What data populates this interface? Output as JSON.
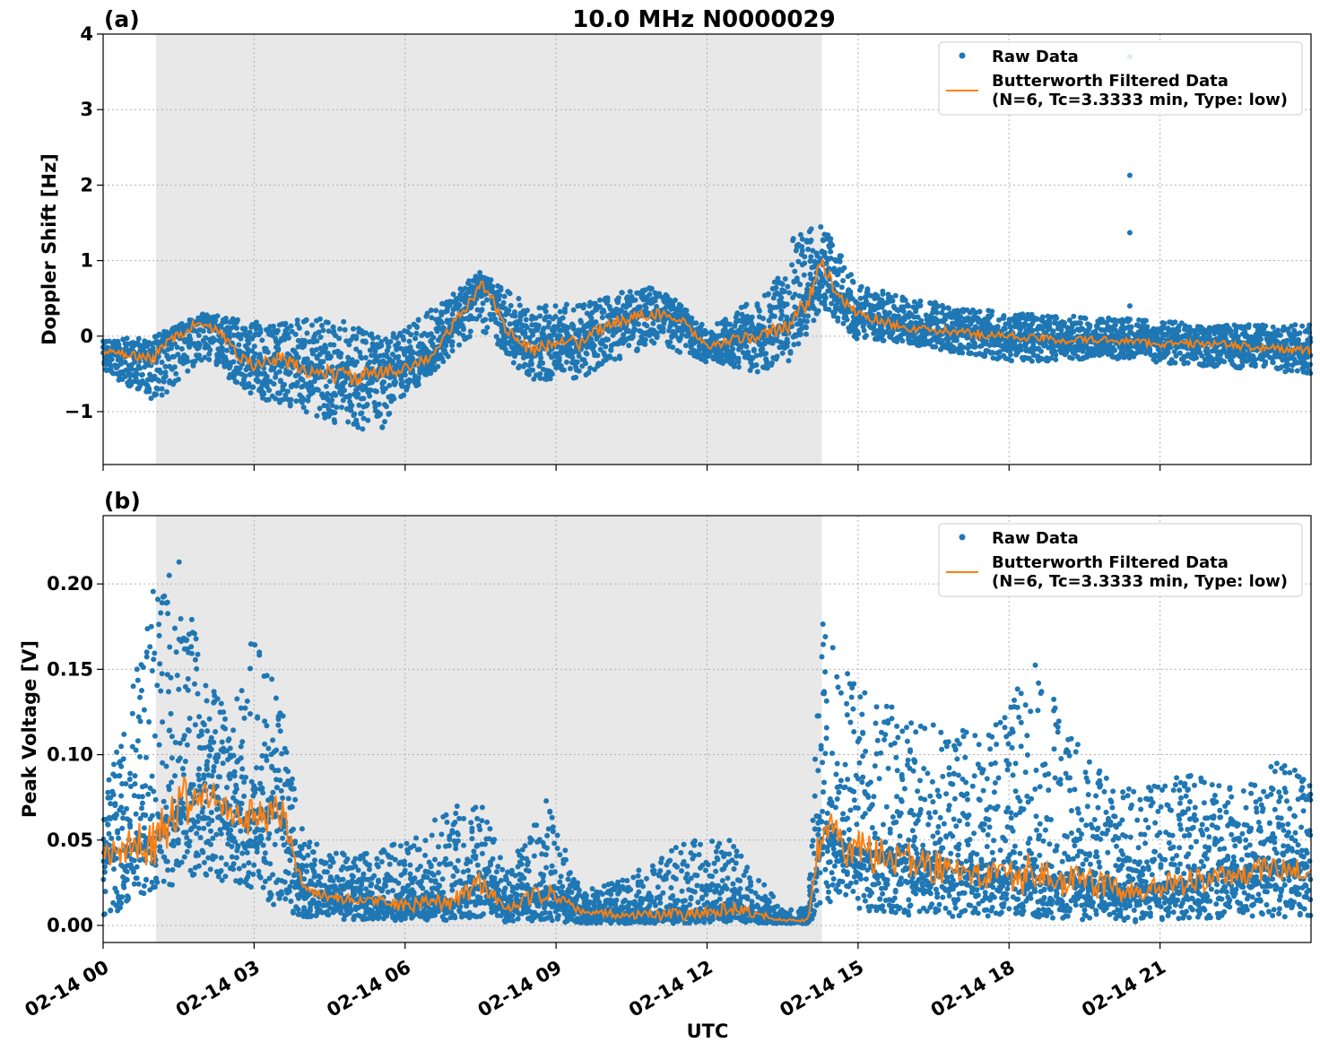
{
  "figure": {
    "title": "10.0 MHz N0000029",
    "xlabel": "UTC"
  },
  "chart_data": [
    {
      "type": "scatter",
      "panel_label": "(a)",
      "ylabel": "Doppler Shift [Hz]",
      "xlim_hours": [
        0,
        24
      ],
      "ylim": [
        -1.7,
        4.0
      ],
      "yticks": [
        -1,
        0,
        1,
        2,
        3,
        4
      ],
      "ytick_labels": [
        "−1",
        "0",
        "1",
        "2",
        "3",
        "4"
      ],
      "xticks_hours": [
        0,
        3,
        6,
        9,
        12,
        15,
        18,
        21
      ],
      "xtick_labels": [
        "02-14 00",
        "02-14 03",
        "02-14 06",
        "02-14 09",
        "02-14 12",
        "02-14 15",
        "02-14 18",
        "02-14 21"
      ],
      "grid": true,
      "shaded_interval_hours": [
        1.05,
        14.28
      ],
      "legend_position": "top-right",
      "legend": [
        "Raw Data",
        "Butterworth Filtered Data",
        "(N=6, Tc=3.3333 min, Type: low)"
      ],
      "colors": {
        "raw": "#1f77b4",
        "filtered": "#ff7f0e",
        "shade": "#e8e8e8"
      },
      "series": [
        {
          "name": "Butterworth Filtered Data",
          "x_hours": [
            0,
            0.5,
            1.0,
            1.3,
            1.6,
            1.9,
            2.3,
            2.7,
            3.0,
            3.5,
            4.0,
            4.5,
            5.0,
            5.5,
            6.0,
            6.5,
            7.0,
            7.3,
            7.5,
            7.7,
            8.0,
            8.5,
            9.0,
            9.5,
            10.0,
            10.5,
            11.0,
            11.5,
            12.0,
            12.5,
            13.0,
            13.5,
            14.0,
            14.28,
            14.6,
            15.0,
            15.5,
            16.0,
            17.0,
            18.0,
            19.0,
            20.0,
            21.0,
            22.0,
            23.0,
            24.0
          ],
          "values": [
            -0.2,
            -0.25,
            -0.3,
            -0.05,
            0.05,
            0.2,
            0.05,
            -0.25,
            -0.4,
            -0.3,
            -0.45,
            -0.5,
            -0.55,
            -0.5,
            -0.4,
            -0.3,
            0.2,
            0.45,
            0.7,
            0.55,
            0.1,
            -0.2,
            -0.05,
            -0.1,
            0.15,
            0.25,
            0.3,
            0.2,
            -0.15,
            -0.05,
            0.0,
            0.1,
            0.45,
            1.0,
            0.5,
            0.3,
            0.2,
            0.1,
            0.05,
            0.0,
            -0.05,
            -0.05,
            -0.1,
            -0.1,
            -0.15,
            -0.2
          ]
        },
        {
          "name": "Raw Data",
          "spread_note": "raw samples scatter around the filtered curve",
          "x_hours": [
            0,
            1.0,
            2.0,
            3.0,
            4.0,
            4.8,
            5.5,
            6.0,
            7.5,
            8.5,
            9.5,
            11.0,
            12.0,
            13.2,
            13.7,
            14.28,
            15.0,
            16.0,
            18.0,
            20.0,
            22.0,
            24.0
          ],
          "upper_envelope": [
            -0.05,
            0.0,
            0.3,
            0.2,
            0.25,
            0.2,
            0.0,
            0.1,
            0.85,
            0.4,
            0.45,
            0.7,
            0.1,
            0.6,
            1.3,
            1.5,
            0.7,
            0.5,
            0.3,
            0.25,
            0.15,
            0.15
          ],
          "lower_envelope": [
            -0.45,
            -0.9,
            -0.3,
            -0.8,
            -1.0,
            -1.2,
            -1.3,
            -0.8,
            0.1,
            -0.6,
            -0.55,
            -0.1,
            -0.35,
            -0.5,
            -0.3,
            0.4,
            -0.05,
            -0.1,
            -0.35,
            -0.3,
            -0.4,
            -0.5
          ],
          "outliers": [
            {
              "x": 20.4,
              "y": 2.13
            },
            {
              "x": 20.4,
              "y": 1.37
            },
            {
              "x": 20.4,
              "y": 0.4
            },
            {
              "x": 20.4,
              "y": 3.7
            }
          ]
        }
      ]
    },
    {
      "type": "scatter",
      "panel_label": "(b)",
      "ylabel": "Peak Voltage [V]",
      "xlim_hours": [
        0,
        24
      ],
      "ylim": [
        -0.01,
        0.24
      ],
      "yticks": [
        0.0,
        0.05,
        0.1,
        0.15,
        0.2
      ],
      "ytick_labels": [
        "0.00",
        "0.05",
        "0.10",
        "0.15",
        "0.20"
      ],
      "xticks_hours": [
        0,
        3,
        6,
        9,
        12,
        15,
        18,
        21
      ],
      "xtick_labels": [
        "02-14 00",
        "02-14 03",
        "02-14 06",
        "02-14 09",
        "02-14 12",
        "02-14 15",
        "02-14 18",
        "02-14 21"
      ],
      "grid": true,
      "shaded_interval_hours": [
        1.05,
        14.28
      ],
      "legend_position": "top-right",
      "legend": [
        "Raw Data",
        "Butterworth Filtered Data",
        "(N=6, Tc=3.3333 min, Type: low)"
      ],
      "colors": {
        "raw": "#1f77b4",
        "filtered": "#ff7f0e",
        "shade": "#e8e8e8"
      },
      "series": [
        {
          "name": "Butterworth Filtered Data",
          "x_hours": [
            0,
            0.5,
            1.0,
            1.5,
            2.0,
            2.5,
            3.0,
            3.5,
            4.0,
            5.0,
            6.0,
            7.0,
            7.5,
            8.0,
            8.8,
            9.5,
            10.5,
            11.5,
            12.5,
            13.5,
            14.0,
            14.28,
            14.5,
            15.0,
            15.5,
            16.5,
            17.5,
            18.5,
            19.5,
            20.5,
            21.5,
            22.5,
            23.5,
            24.0
          ],
          "values": [
            0.04,
            0.045,
            0.05,
            0.07,
            0.08,
            0.07,
            0.06,
            0.07,
            0.02,
            0.015,
            0.012,
            0.015,
            0.025,
            0.01,
            0.02,
            0.008,
            0.006,
            0.007,
            0.01,
            0.003,
            0.003,
            0.06,
            0.05,
            0.045,
            0.04,
            0.035,
            0.03,
            0.03,
            0.025,
            0.02,
            0.025,
            0.03,
            0.035,
            0.035
          ]
        },
        {
          "name": "Raw Data",
          "spread_note": "raw samples scatter around the filtered curve",
          "x_hours": [
            0,
            0.5,
            1.0,
            1.5,
            2.0,
            2.5,
            3.0,
            3.5,
            4.0,
            5.0,
            6.0,
            7.0,
            7.5,
            8.0,
            8.8,
            9.5,
            10.5,
            11.5,
            12.5,
            13.5,
            14.0,
            14.28,
            14.5,
            15.0,
            15.5,
            16.5,
            17.5,
            18.5,
            19.5,
            20.5,
            21.5,
            22.5,
            23.5,
            24.0
          ],
          "upper_envelope": [
            0.08,
            0.13,
            0.2,
            0.22,
            0.15,
            0.13,
            0.17,
            0.14,
            0.05,
            0.04,
            0.05,
            0.07,
            0.075,
            0.03,
            0.075,
            0.02,
            0.03,
            0.05,
            0.05,
            0.01,
            0.01,
            0.18,
            0.17,
            0.14,
            0.13,
            0.12,
            0.11,
            0.155,
            0.1,
            0.08,
            0.09,
            0.08,
            0.1,
            0.09
          ],
          "lower_envelope": [
            0.005,
            0.01,
            0.02,
            0.025,
            0.03,
            0.025,
            0.02,
            0.01,
            0.005,
            0.003,
            0.003,
            0.003,
            0.005,
            0.002,
            0.003,
            0.001,
            0.001,
            0.001,
            0.002,
            0.001,
            0.001,
            0.01,
            0.01,
            0.01,
            0.005,
            0.005,
            0.005,
            0.005,
            0.003,
            0.002,
            0.003,
            0.005,
            0.005,
            0.005
          ]
        }
      ]
    }
  ]
}
